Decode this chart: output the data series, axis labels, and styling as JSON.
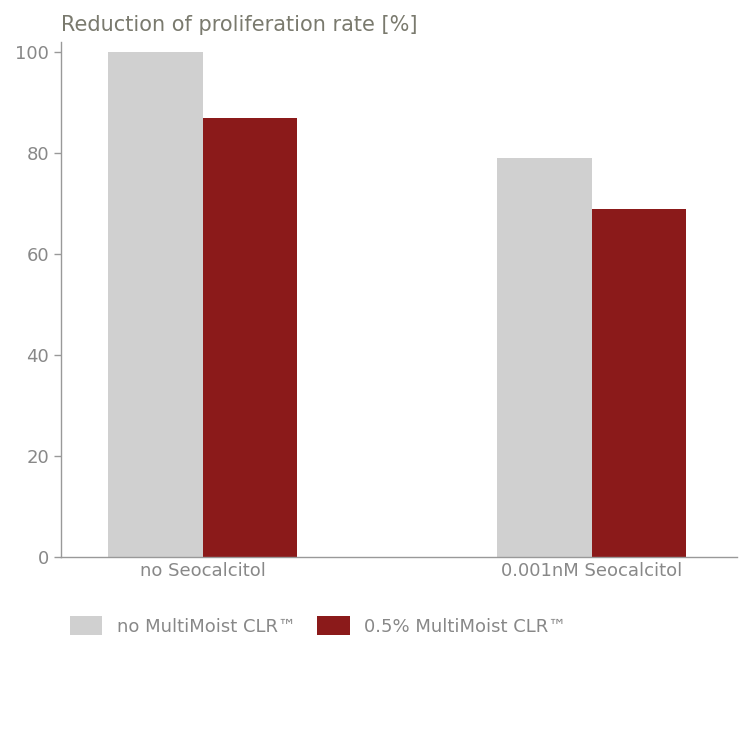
{
  "title": "Reduction of proliferation rate [%]",
  "title_color": "#7a7a6e",
  "title_fontsize": 15,
  "groups": [
    "no Seocalcitol",
    "0.001nM Seocalcitol"
  ],
  "series_labels": [
    "no MultiMoist CLR™",
    "0.5% MultiMoist CLR™"
  ],
  "values": [
    [
      100,
      87
    ],
    [
      79,
      69
    ]
  ],
  "colors": [
    "#d0d0d0",
    "#8b1a1a"
  ],
  "bar_width": 0.28,
  "ylim": [
    0,
    102
  ],
  "yticks": [
    0,
    20,
    40,
    60,
    80,
    100
  ],
  "tick_fontsize": 13,
  "legend_fontsize": 13,
  "background_color": "#ffffff",
  "axis_color": "#999999",
  "label_color": "#888888"
}
